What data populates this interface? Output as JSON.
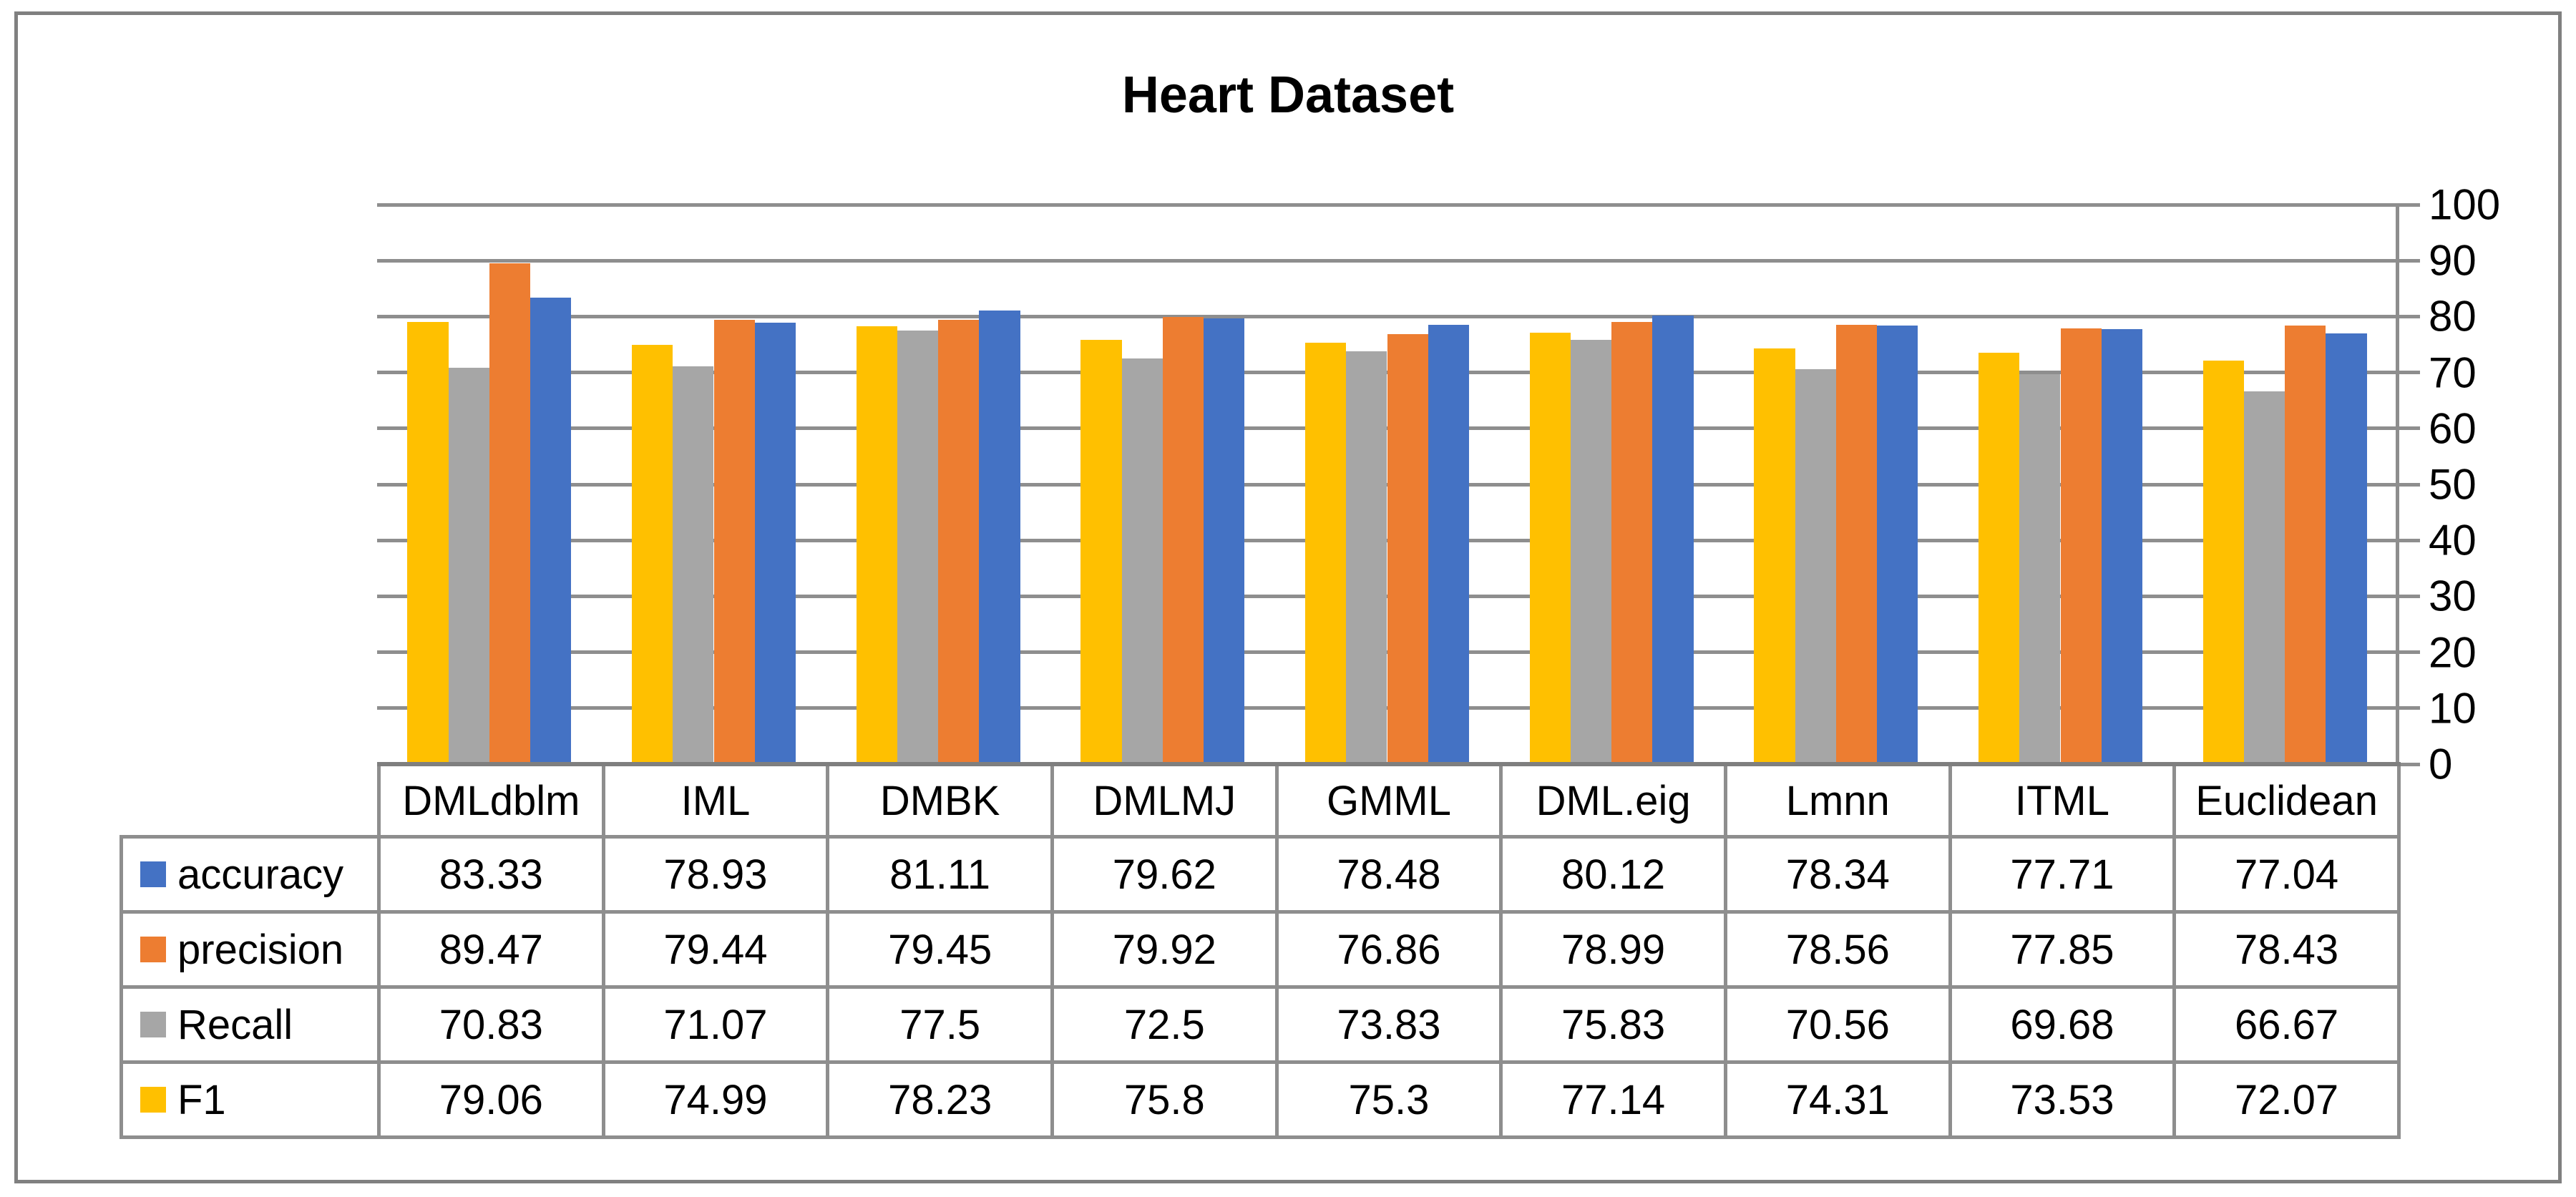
{
  "chart_data": {
    "type": "bar",
    "title": "Heart Dataset",
    "categories": [
      "DMLdblm",
      "IML",
      "DMBK",
      "DMLMJ",
      "GMML",
      "DML.eig",
      "Lmnn",
      "ITML",
      "Euclidean"
    ],
    "series": [
      {
        "name": "accuracy",
        "color": "#4472C4",
        "values": [
          83.33,
          78.93,
          81.11,
          79.62,
          78.48,
          80.12,
          78.34,
          77.71,
          77.04
        ]
      },
      {
        "name": "precision",
        "color": "#ED7D31",
        "values": [
          89.47,
          79.44,
          79.45,
          79.92,
          76.86,
          78.99,
          78.56,
          77.85,
          78.43
        ]
      },
      {
        "name": "Recall",
        "color": "#A6A6A6",
        "values": [
          70.83,
          71.07,
          77.5,
          72.5,
          73.83,
          75.83,
          70.56,
          69.68,
          66.67
        ]
      },
      {
        "name": "F1",
        "color": "#FFC000",
        "values": [
          79.06,
          74.99,
          78.23,
          75.8,
          75.3,
          77.14,
          74.31,
          73.53,
          72.07
        ]
      }
    ],
    "bar_order": [
      "F1",
      "Recall",
      "precision",
      "accuracy"
    ],
    "ylim": [
      0,
      100
    ],
    "yticks": [
      0,
      10,
      20,
      30,
      40,
      50,
      60,
      70,
      80,
      90,
      100
    ],
    "y_axis_side": "right",
    "grid": true,
    "legend_position": "table-left"
  },
  "colors": {
    "gridline": "#8E8E8E",
    "axis": "#7F7F7F",
    "table_border": "#8E8E8E",
    "figure_border": "#808080",
    "text": "#000000"
  }
}
